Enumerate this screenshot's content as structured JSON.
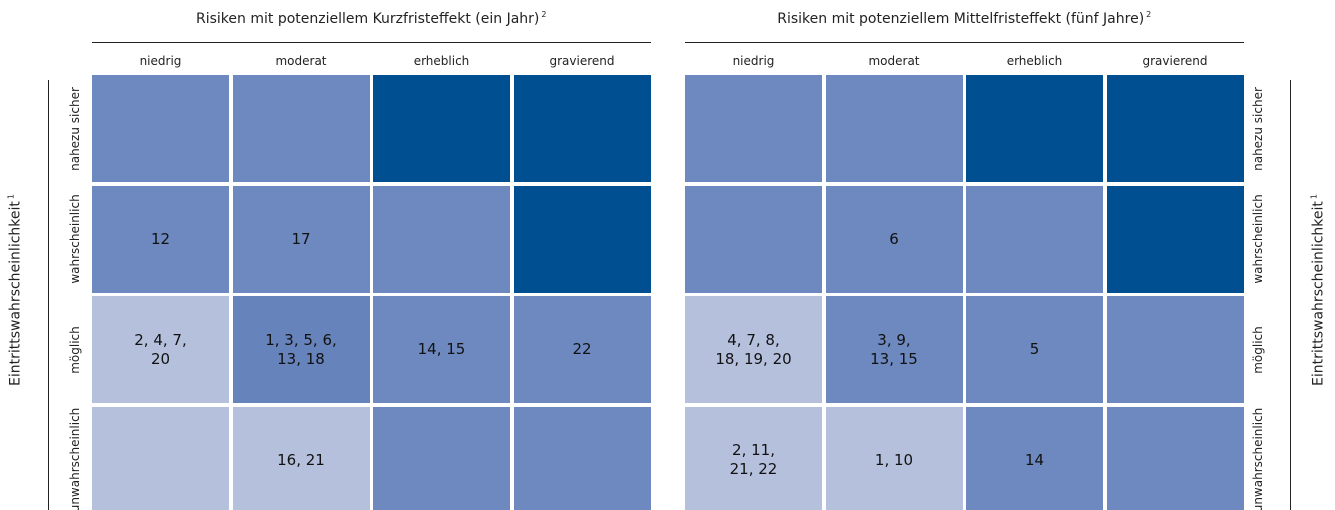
{
  "matrices": [
    {
      "title": "Risiken mit potenziellem Kurzfristeffekt (ein Jahr)",
      "title_note": "2",
      "axis_label": "Eintrittswahrscheinlichkeit",
      "axis_note": "1",
      "columns": [
        "niedrig",
        "moderat",
        "erheblich",
        "gravierend"
      ],
      "rows": [
        "nahezu sicher",
        "wahrscheinlich",
        "möglich",
        "unwahrscheinlich"
      ],
      "cells": [
        [
          {
            "color": "#6d89bf"
          },
          {
            "color": "#6d89bf"
          },
          {
            "color": "#004f91"
          },
          {
            "color": "#004f91"
          }
        ],
        [
          {
            "color": "#6d89bf",
            "lines": [
              "12"
            ]
          },
          {
            "color": "#6d89bf",
            "lines": [
              "17"
            ]
          },
          {
            "color": "#6d89bf"
          },
          {
            "color": "#004f91"
          }
        ],
        [
          {
            "color": "#b5c0dd",
            "lines": [
              "2, 4, 7,",
              "20"
            ]
          },
          {
            "color": "#6783bb",
            "lines": [
              "1, 3, 5, 6,",
              "13, 18"
            ]
          },
          {
            "color": "#6d89bf",
            "lines": [
              "14, 15"
            ]
          },
          {
            "color": "#6d89bf",
            "lines": [
              "22"
            ]
          }
        ],
        [
          {
            "color": "#b5c0dd"
          },
          {
            "color": "#b5c0dd",
            "lines": [
              "16, 21"
            ]
          },
          {
            "color": "#6d89bf"
          },
          {
            "color": "#6d89bf"
          }
        ]
      ]
    },
    {
      "title": "Risiken mit potenziellem Mittelfristeffekt (fünf Jahre)",
      "title_note": "2",
      "axis_label": "Eintrittswahrscheinlichkeit",
      "axis_note": "1",
      "columns": [
        "niedrig",
        "moderat",
        "erheblich",
        "gravierend"
      ],
      "rows": [
        "nahezu sicher",
        "wahrscheinlich",
        "möglich",
        "unwahrscheinlich"
      ],
      "cells": [
        [
          {
            "color": "#6d89bf"
          },
          {
            "color": "#6d89bf"
          },
          {
            "color": "#004f91"
          },
          {
            "color": "#004f91"
          }
        ],
        [
          {
            "color": "#6d89bf"
          },
          {
            "color": "#6d89bf",
            "lines": [
              "6"
            ]
          },
          {
            "color": "#6d89bf"
          },
          {
            "color": "#004f91"
          }
        ],
        [
          {
            "color": "#b5c0dd",
            "lines": [
              "4, 7, 8,",
              "18, 19, 20"
            ]
          },
          {
            "color": "#6d89bf",
            "lines": [
              "3, 9,",
              "13, 15"
            ]
          },
          {
            "color": "#6d89bf",
            "lines": [
              "5"
            ]
          },
          {
            "color": "#6d89bf"
          }
        ],
        [
          {
            "color": "#b5c0dd",
            "lines": [
              "2, 11,",
              "21, 22"
            ]
          },
          {
            "color": "#b5c0dd",
            "lines": [
              "1, 10"
            ]
          },
          {
            "color": "#6d89bf",
            "lines": [
              "14"
            ]
          },
          {
            "color": "#6d89bf"
          }
        ]
      ]
    }
  ]
}
